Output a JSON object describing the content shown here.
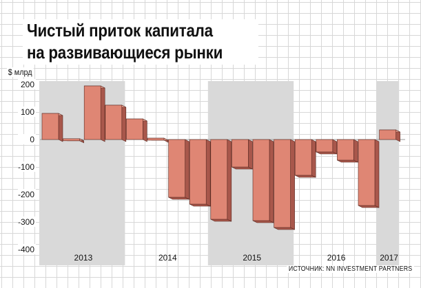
{
  "title_lines": [
    "Чистый приток капитала",
    "на развивающиеся рынки"
  ],
  "source": "ИСТОЧНИК: NN INVESTMENT PARTNERS",
  "colors": {
    "bar_front": "#df8674",
    "bar_side": "#a8574b",
    "bar_top": "#eea594",
    "bar_outline": "#5a2a22",
    "shade": "#d9d9d9",
    "grid": "#d7d7d7"
  },
  "chart_data": {
    "type": "bar",
    "ylabel": "$ млрд",
    "ylim": [
      -420,
      230
    ],
    "yticks": [
      200,
      100,
      0,
      -100,
      -200,
      -300,
      -400
    ],
    "values": [
      95,
      3,
      195,
      125,
      75,
      5,
      -210,
      -235,
      -290,
      -100,
      -295,
      -320,
      -130,
      -45,
      -75,
      -240,
      35
    ],
    "year_labels": [
      {
        "label": "2013",
        "bar_start": 0,
        "bar_end": 3
      },
      {
        "label": "2014",
        "bar_start": 4,
        "bar_end": 7
      },
      {
        "label": "2015",
        "bar_start": 8,
        "bar_end": 11
      },
      {
        "label": "2016",
        "bar_start": 12,
        "bar_end": 15
      },
      {
        "label": "2017",
        "bar_start": 16,
        "bar_end": 16
      }
    ],
    "shaded_years": [
      "2013",
      "2015",
      "2017"
    ],
    "grid": true,
    "legend": "none"
  }
}
